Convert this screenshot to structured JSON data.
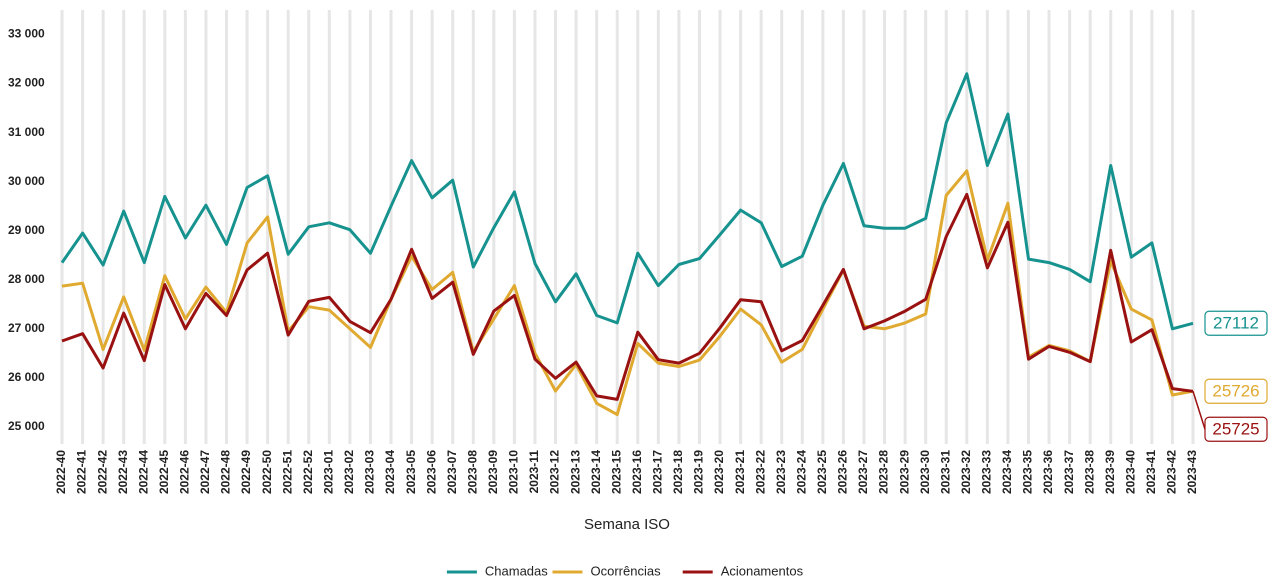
{
  "chart_data": {
    "type": "line",
    "x_label": "Semana ISO",
    "categories": [
      "2022-40",
      "2022-41",
      "2022-42",
      "2022-43",
      "2022-44",
      "2022-45",
      "2022-46",
      "2022-47",
      "2022-48",
      "2022-49",
      "2022-50",
      "2022-51",
      "2022-52",
      "2023-01",
      "2023-02",
      "2023-03",
      "2023-04",
      "2023-05",
      "2023-06",
      "2023-07",
      "2023-08",
      "2023-09",
      "2023-10",
      "2023-11",
      "2023-12",
      "2023-13",
      "2023-14",
      "2023-15",
      "2023-16",
      "2023-17",
      "2023-18",
      "2023-19",
      "2023-20",
      "2023-21",
      "2023-22",
      "2023-23",
      "2023-24",
      "2023-25",
      "2023-26",
      "2023-27",
      "2023-28",
      "2023-29",
      "2023-30",
      "2023-31",
      "2023-32",
      "2023-33",
      "2023-34",
      "2023-35",
      "2023-36",
      "2023-37",
      "2023-38",
      "2023-39",
      "2023-40",
      "2023-41",
      "2023-42",
      "2023-43"
    ],
    "series": [
      {
        "name": "Chamadas",
        "color": "#16928f",
        "values": [
          28350,
          28950,
          28300,
          29400,
          28350,
          29700,
          28850,
          29520,
          28720,
          29880,
          30120,
          28520,
          29080,
          29160,
          29020,
          28540,
          29500,
          30430,
          29670,
          30030,
          28260,
          29060,
          29790,
          28330,
          27550,
          28120,
          27270,
          27120,
          28540,
          27880,
          28310,
          28430,
          28920,
          29420,
          29160,
          28270,
          28480,
          29520,
          30370,
          29100,
          29050,
          29050,
          29250,
          31200,
          32200,
          30330,
          31380,
          28420,
          28350,
          28210,
          27960,
          30330,
          28460,
          28750,
          27000,
          27112
        ]
      },
      {
        "name": "Ocorrências",
        "color": "#e0a930",
        "values": [
          27870,
          27930,
          26580,
          27650,
          26560,
          28080,
          27200,
          27850,
          27330,
          28750,
          29280,
          26950,
          27450,
          27380,
          27000,
          26620,
          27600,
          28480,
          27800,
          28150,
          26530,
          27200,
          27880,
          26500,
          25730,
          26270,
          25480,
          25250,
          26700,
          26300,
          26230,
          26360,
          26850,
          27400,
          27080,
          26320,
          26580,
          27400,
          28200,
          27050,
          27000,
          27120,
          27300,
          29720,
          30220,
          28400,
          29560,
          26420,
          26660,
          26550,
          26330,
          28380,
          27400,
          27180,
          25650,
          25726
        ]
      },
      {
        "name": "Acionamentos",
        "color": "#9a1111",
        "values": [
          26750,
          26900,
          26200,
          27320,
          26350,
          27900,
          27000,
          27720,
          27270,
          28200,
          28540,
          26870,
          27560,
          27640,
          27150,
          26920,
          27600,
          28620,
          27620,
          27950,
          26480,
          27360,
          27680,
          26380,
          25990,
          26320,
          25630,
          25560,
          26930,
          26370,
          26300,
          26500,
          27020,
          27590,
          27550,
          26550,
          26760,
          27480,
          28210,
          27000,
          27160,
          27360,
          27600,
          28880,
          29740,
          28240,
          29170,
          26380,
          26640,
          26520,
          26330,
          28600,
          26730,
          26980,
          25780,
          25725
        ]
      }
    ],
    "ylim": [
      24650,
      33500
    ],
    "yticks": [
      {
        "value": 25000,
        "label": "25 000"
      },
      {
        "value": 26000,
        "label": "26 000"
      },
      {
        "value": 27000,
        "label": "27 000"
      },
      {
        "value": 28000,
        "label": "28 000"
      },
      {
        "value": 29000,
        "label": "29 000"
      },
      {
        "value": 30000,
        "label": "30 000"
      },
      {
        "value": 31000,
        "label": "31 000"
      },
      {
        "value": 32000,
        "label": "32 000"
      },
      {
        "value": 33000,
        "label": "33 000"
      }
    ],
    "grid": "x",
    "legend": "bottom"
  }
}
